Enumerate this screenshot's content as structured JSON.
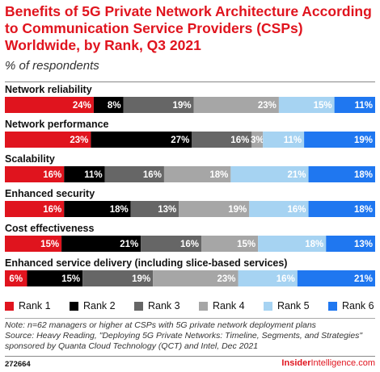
{
  "title": "Benefits of 5G Private Network Architecture According to Communication Service Providers (CSPs) Worldwide, by Rank, Q3 2021",
  "subtitle": "% of respondents",
  "note": "Note: n=62 managers or higher at CSPs with 5G private network deployment plans",
  "source": "Source: Heavy Reading, \"Deploying 5G Private Networks: Timeline, Segments, and Strategies\" sponsored by Quanta Cloud Technology (QCT) and Intel, Dec 2021",
  "footer_id": "272664",
  "brand": {
    "part1": "Insider",
    "part2": "Intelligence",
    "part3": ".com"
  },
  "colors": {
    "Rank 1": "#e0141e",
    "Rank 2": "#000000",
    "Rank 3": "#666666",
    "Rank 4": "#a6a6a6",
    "Rank 5": "#a6d3f2",
    "Rank 6": "#1f77f0"
  },
  "chart_data": {
    "type": "bar",
    "orientation": "horizontal-stacked",
    "categories": [
      "Network reliability",
      "Network performance",
      "Scalability",
      "Enhanced security",
      "Cost effectiveness",
      "Enhanced service delivery (including slice-based services)"
    ],
    "series": [
      {
        "name": "Rank 1",
        "values": [
          24,
          23,
          16,
          16,
          15,
          6
        ]
      },
      {
        "name": "Rank 2",
        "values": [
          8,
          27,
          11,
          18,
          21,
          15
        ]
      },
      {
        "name": "Rank 3",
        "values": [
          19,
          16,
          16,
          13,
          16,
          19
        ]
      },
      {
        "name": "Rank 4",
        "values": [
          23,
          3,
          18,
          19,
          15,
          23
        ]
      },
      {
        "name": "Rank 5",
        "values": [
          15,
          11,
          21,
          16,
          18,
          16
        ]
      },
      {
        "name": "Rank 6",
        "values": [
          11,
          19,
          18,
          18,
          13,
          21
        ]
      }
    ],
    "value_suffix": "%",
    "legend_position": "bottom"
  }
}
